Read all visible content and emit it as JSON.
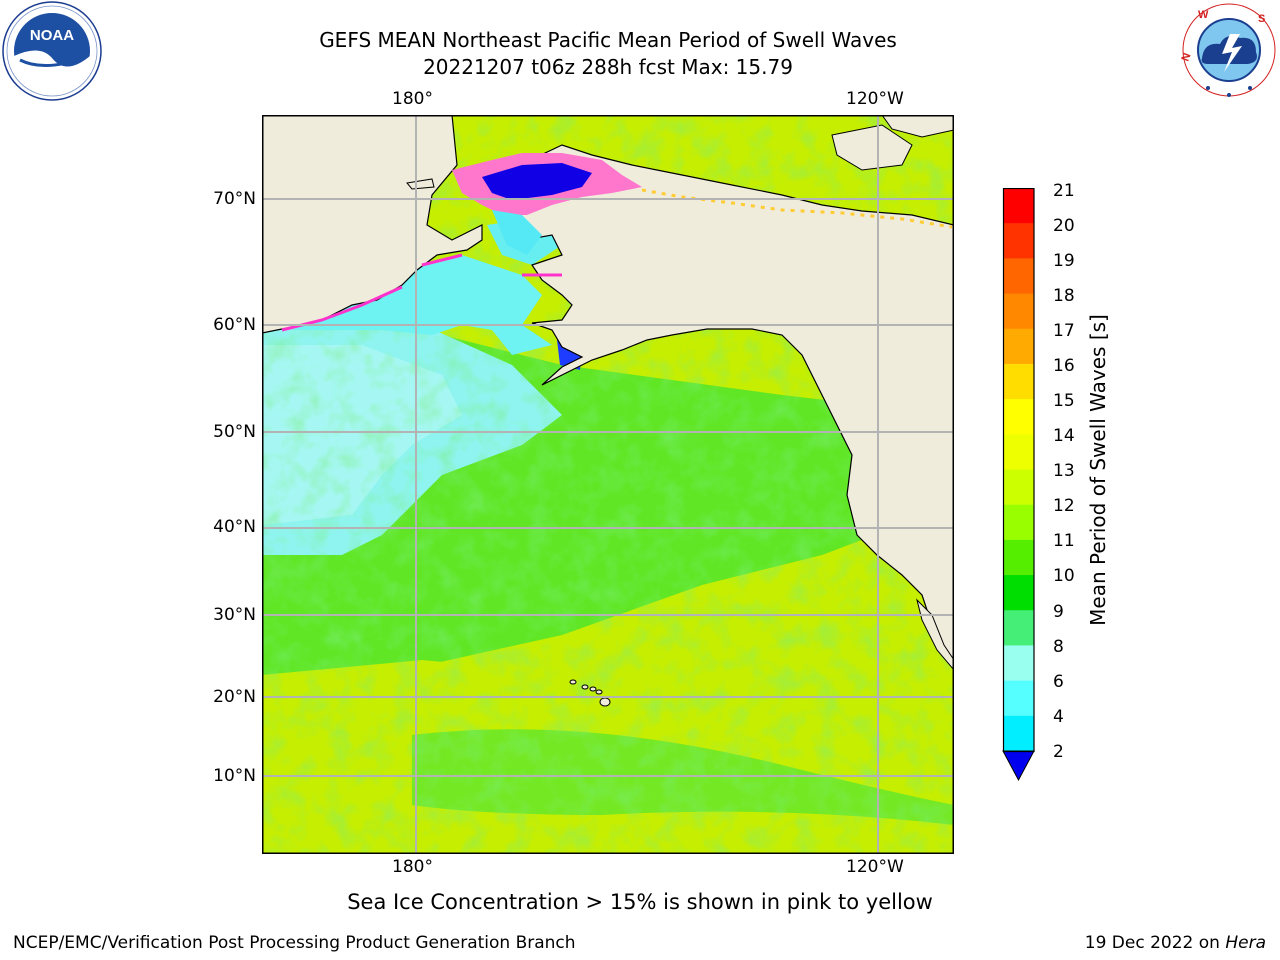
{
  "header": {
    "title_line1": "GEFS MEAN Northeast Pacific Mean Period of Swell Waves",
    "title_line2": "20221207 t06z 288h fcst   Max: 15.79"
  },
  "logos": {
    "left": "NOAA",
    "left_ring_text": "NATIONAL OCEANIC AND ATMOSPHERIC ADMINISTRATION · U.S. DEPARTMENT OF COMMERCE",
    "right_ring_text": "NATIONAL WEATHER SERVICE"
  },
  "map": {
    "lon_top": [
      "180°",
      "120°W"
    ],
    "lon_bottom": [
      "180°",
      "120°W"
    ],
    "lat_labels": [
      "70°N",
      "60°N",
      "50°N",
      "40°N",
      "30°N",
      "20°N",
      "10°N"
    ],
    "colors": {
      "land": "#efecdc",
      "ocean_cyan": "#9cf4f4",
      "ocean_green": "#33dd33",
      "ocean_yellowgreen": "#c8f000",
      "sea_ice": "#ff66cc",
      "deep_blue": "#0000ee",
      "grid": "#b3b3b3"
    }
  },
  "colorbar": {
    "title": "Mean Period of Swell Waves [s]",
    "ticks": [
      "21",
      "20",
      "19",
      "18",
      "17",
      "16",
      "15",
      "14",
      "13",
      "12",
      "11",
      "10",
      "9",
      "8",
      "6",
      "4",
      "2"
    ],
    "colors_top_to_bottom": [
      "#ff0000",
      "#ff3300",
      "#ff6600",
      "#ff8800",
      "#ffaa00",
      "#ffdd00",
      "#ffff00",
      "#eeff00",
      "#ccff00",
      "#99ff00",
      "#55ee00",
      "#00dd00",
      "#44ee77",
      "#99ffee",
      "#55ffff",
      "#00eeff",
      "#00aaff",
      "#0066ff",
      "#0000ee"
    ]
  },
  "caption": "Sea Ice Concentration > 15% is shown in pink to yellow",
  "footer": {
    "left": "NCEP/EMC/Verification Post Processing Product Generation Branch",
    "right_prefix": "19 Dec 2022 on ",
    "right_italic": "Hera"
  }
}
